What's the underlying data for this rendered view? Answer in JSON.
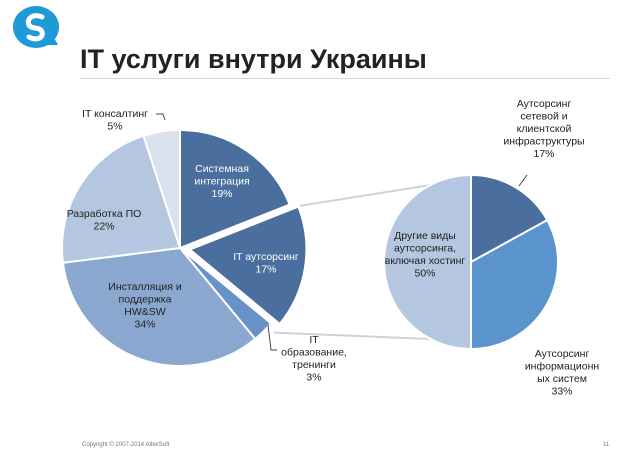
{
  "slide": {
    "title": "IT услуги внутри Украины",
    "copyright": "Copyright © 2007-2014 AltexSoft",
    "page_number": "11"
  },
  "chart_data": [
    {
      "type": "pie",
      "slices": [
        {
          "label": "Системная интеграция",
          "value": 19,
          "value_label": "19%",
          "color": "#4a6e9e",
          "label_color": "#ffffff",
          "exploded": false
        },
        {
          "label": "IT аутсорсинг",
          "value": 17,
          "value_label": "17%",
          "color": "#4a6e9e",
          "label_color": "#ffffff",
          "exploded": true
        },
        {
          "label": "IT образование, тренинги",
          "value": 3,
          "value_label": "3%",
          "color": "#6892c6",
          "label_color": "#222222",
          "exploded": false
        },
        {
          "label": "Инсталляция и поддержка HW&SW",
          "value": 34,
          "value_label": "34%",
          "color": "#8aa7cf",
          "label_color": "#222222",
          "exploded": false
        },
        {
          "label": "Разработка ПО",
          "value": 22,
          "value_label": "22%",
          "color": "#b4c6e0",
          "label_color": "#222222",
          "exploded": false
        },
        {
          "label": "IT консалтинг",
          "value": 5,
          "value_label": "5%",
          "color": "#d9e1ee",
          "label_color": "#222222",
          "exploded": false
        }
      ]
    },
    {
      "type": "pie",
      "slices": [
        {
          "label": "Аутсорсинг сетевой и клиентской инфраструктуры",
          "value": 17,
          "value_label": "17%",
          "color": "#4a6e9e"
        },
        {
          "label": "Аутсорсинг информационных систем",
          "value": 33,
          "value_label": "33%",
          "color": "#5b93cc"
        },
        {
          "label": "Другие виды аутсорсинга, включая хостинг",
          "value": 50,
          "value_label": "50%",
          "color": "#b4c6e0"
        }
      ]
    }
  ]
}
